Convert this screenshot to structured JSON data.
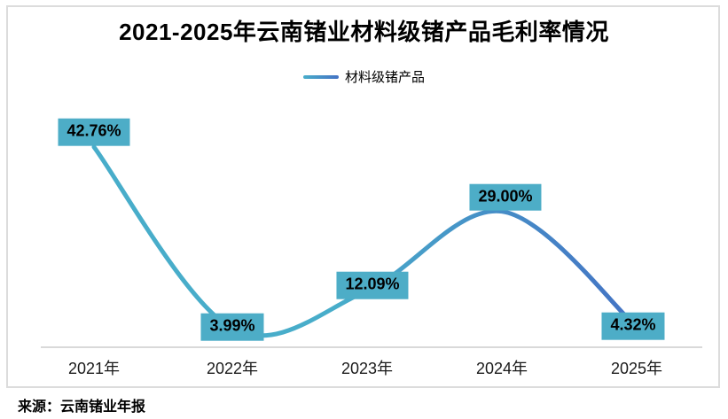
{
  "title": "2021-2025年云南锗业材料级锗产品毛利率情况",
  "legend": {
    "label": "材料级锗产品"
  },
  "source": "来源：云南锗业年报",
  "colors": {
    "line_gradient_start": "#48adca",
    "line_gradient_end": "#4472c4",
    "label_box_bg": "#4dadc7",
    "label_text": "#000000",
    "axis_line": "#d9d9d9",
    "chart_border": "#dcdcdc"
  },
  "chart_data": {
    "type": "line",
    "smooth": true,
    "title": "2021-2025年云南锗业材料级锗产品毛利率情况",
    "categories": [
      "2021年",
      "2022年",
      "2023年",
      "2024年",
      "2025年"
    ],
    "series": [
      {
        "name": "材料级锗产品",
        "values": [
          42.76,
          3.99,
          12.09,
          29.0,
          4.32
        ]
      }
    ],
    "data_labels": [
      "42.76%",
      "3.99%",
      "12.09%",
      "29.00%",
      "4.32%"
    ],
    "xlabel": "",
    "ylabel": "",
    "unit": "%",
    "ylim": [
      0,
      45
    ],
    "grid": false,
    "y_axis_visible": false,
    "legend_position": "top-center"
  }
}
